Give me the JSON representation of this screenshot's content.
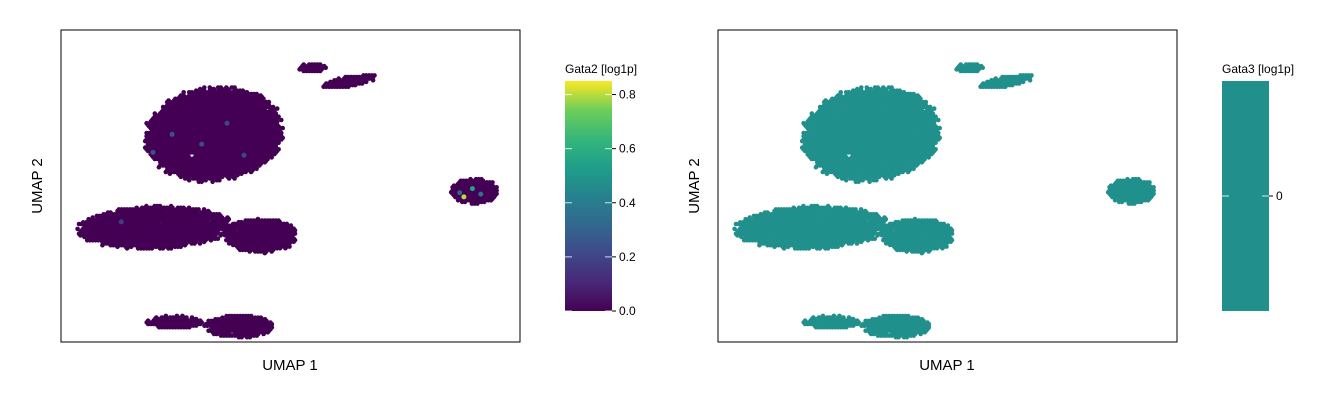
{
  "chart_data": [
    {
      "type": "scatter",
      "title": "",
      "xlabel": "UMAP 1",
      "ylabel": "UMAP 2",
      "xlim": [
        -10,
        10
      ],
      "ylim": [
        -10,
        10
      ],
      "grid": false,
      "colorbar": {
        "label": "Gata2 [log1p]",
        "colormap": "viridis",
        "range": [
          0,
          0.85
        ],
        "ticks": [
          "0.0",
          "0.2",
          "0.4",
          "0.6",
          "0.8"
        ],
        "tick_values": [
          0,
          0.2,
          0.4,
          0.6,
          0.8
        ]
      },
      "base_color": "#440154",
      "clusters": [
        {
          "name": "top-right-strip-a",
          "cx": 1.0,
          "cy": 8.3,
          "rx": 0.7,
          "ry": 0.3,
          "rot": 0
        },
        {
          "name": "top-right-strip-b",
          "cx": 2.8,
          "cy": 7.3,
          "rx": 1.3,
          "ry": 0.35,
          "rot": 0.25
        },
        {
          "name": "upper-left-blob",
          "cx": -3.6,
          "cy": 3.5,
          "rx": 3.1,
          "ry": 3.4,
          "rot": -0.55
        },
        {
          "name": "right-small-blob",
          "cx": 8.7,
          "cy": -0.6,
          "rx": 1.1,
          "ry": 0.9,
          "rot": 0
        },
        {
          "name": "middle-left-blob",
          "cx": -6.4,
          "cy": -3.2,
          "rx": 3.6,
          "ry": 1.5,
          "rot": 0.05
        },
        {
          "name": "middle-right-blob",
          "cx": -1.4,
          "cy": -3.8,
          "rx": 1.7,
          "ry": 1.2,
          "rot": 0
        },
        {
          "name": "bottom-blob-a",
          "cx": -5.5,
          "cy": -10.0,
          "rx": 1.3,
          "ry": 0.45,
          "rot": 0
        },
        {
          "name": "bottom-blob-b",
          "cx": -2.4,
          "cy": -10.3,
          "rx": 1.6,
          "ry": 0.8,
          "rot": 0
        }
      ],
      "highlights": [
        {
          "x": 8.6,
          "y": -0.4,
          "value": 0.55
        },
        {
          "x": 8.2,
          "y": -1.0,
          "value": 0.8
        },
        {
          "x": 8.0,
          "y": -0.7,
          "value": 0.3
        },
        {
          "x": 9.0,
          "y": -0.8,
          "value": 0.35
        },
        {
          "x": -5.6,
          "y": 3.5,
          "value": 0.25
        },
        {
          "x": -4.2,
          "y": 2.8,
          "value": 0.22
        },
        {
          "x": -3.0,
          "y": 4.3,
          "value": 0.2
        },
        {
          "x": -6.5,
          "y": 2.2,
          "value": 0.25
        },
        {
          "x": -2.2,
          "y": 2.0,
          "value": 0.2
        },
        {
          "x": -8.0,
          "y": -2.8,
          "value": 0.18
        }
      ]
    },
    {
      "type": "scatter",
      "title": "",
      "xlabel": "UMAP 1",
      "ylabel": "UMAP 2",
      "xlim": [
        -10,
        10
      ],
      "ylim": [
        -10,
        10
      ],
      "grid": false,
      "colorbar": {
        "label": "Gata3 [log1p]",
        "colormap": "constant",
        "color": "#21908d",
        "ticks": [
          "0"
        ],
        "tick_values": [
          0
        ]
      },
      "base_color": "#21908d",
      "clusters": [
        {
          "name": "top-right-strip-a",
          "cx": 1.0,
          "cy": 8.3,
          "rx": 0.7,
          "ry": 0.3,
          "rot": 0
        },
        {
          "name": "top-right-strip-b",
          "cx": 2.8,
          "cy": 7.3,
          "rx": 1.3,
          "ry": 0.35,
          "rot": 0.25
        },
        {
          "name": "upper-left-blob",
          "cx": -3.6,
          "cy": 3.5,
          "rx": 3.1,
          "ry": 3.4,
          "rot": -0.55
        },
        {
          "name": "right-small-blob",
          "cx": 8.7,
          "cy": -0.6,
          "rx": 1.1,
          "ry": 0.9,
          "rot": 0
        },
        {
          "name": "middle-left-blob",
          "cx": -6.4,
          "cy": -3.2,
          "rx": 3.6,
          "ry": 1.5,
          "rot": 0.05
        },
        {
          "name": "middle-right-blob",
          "cx": -1.4,
          "cy": -3.8,
          "rx": 1.7,
          "ry": 1.2,
          "rot": 0
        },
        {
          "name": "bottom-blob-a",
          "cx": -5.5,
          "cy": -10.0,
          "rx": 1.3,
          "ry": 0.45,
          "rot": 0
        },
        {
          "name": "bottom-blob-b",
          "cx": -2.4,
          "cy": -10.3,
          "rx": 1.6,
          "ry": 0.8,
          "rot": 0
        }
      ],
      "highlights": []
    }
  ]
}
